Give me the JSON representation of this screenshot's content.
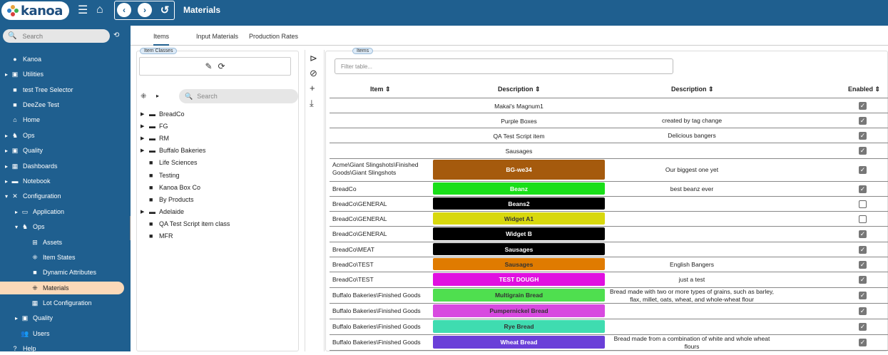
{
  "app": {
    "logo_text": "kanoa",
    "page_title": "Materials"
  },
  "sidebar": {
    "search_placeholder": "Search",
    "items": [
      {
        "label": "Kanoa",
        "icon": "●",
        "arrow": ""
      },
      {
        "label": "Utilities",
        "icon": "▣",
        "arrow": "▸"
      },
      {
        "label": "test Tree Selector",
        "icon": "■",
        "arrow": ""
      },
      {
        "label": "DeeZee Test",
        "icon": "■",
        "arrow": ""
      },
      {
        "label": "Home",
        "icon": "⌂",
        "arrow": ""
      },
      {
        "label": "Ops",
        "icon": "♞",
        "arrow": "▸"
      },
      {
        "label": "Quality",
        "icon": "▣",
        "arrow": "▸"
      },
      {
        "label": "Dashboards",
        "icon": "▦",
        "arrow": "▸"
      },
      {
        "label": "Notebook",
        "icon": "▬",
        "arrow": "▸"
      },
      {
        "label": "Configuration",
        "icon": "✕",
        "arrow": "▾"
      },
      {
        "label": "Application",
        "icon": "▭",
        "arrow": "▸"
      },
      {
        "label": "Ops",
        "icon": "♞",
        "arrow": "▾"
      },
      {
        "label": "Assets",
        "icon": "⊞",
        "arrow": ""
      },
      {
        "label": "Item States",
        "icon": "⁜",
        "arrow": ""
      },
      {
        "label": "Dynamic Attributes",
        "icon": "■",
        "arrow": ""
      },
      {
        "label": "Materials",
        "icon": "⁜",
        "arrow": ""
      },
      {
        "label": "Lot Configuration",
        "icon": "▦",
        "arrow": ""
      },
      {
        "label": "Quality",
        "icon": "▣",
        "arrow": "▸"
      },
      {
        "label": "Users",
        "icon": "👥",
        "arrow": ""
      },
      {
        "label": "Help",
        "icon": "?",
        "arrow": ""
      }
    ]
  },
  "tabs": [
    "Items",
    "Input Materials",
    "Production Rates"
  ],
  "item_classes": {
    "label": "Item Classes",
    "search_placeholder": "Search",
    "tree": [
      {
        "label": "BreadCo",
        "folder": true
      },
      {
        "label": "FG",
        "folder": true
      },
      {
        "label": "RM",
        "folder": true
      },
      {
        "label": "Buffalo Bakeries",
        "folder": true
      },
      {
        "label": "Life Sciences",
        "folder": false
      },
      {
        "label": "Testing",
        "folder": false
      },
      {
        "label": "Kanoa Box Co",
        "folder": false
      },
      {
        "label": "By Products",
        "folder": false
      },
      {
        "label": "Adelaide",
        "folder": true
      },
      {
        "label": "QA Test Script item class",
        "folder": false
      },
      {
        "label": "MFR",
        "folder": false
      }
    ]
  },
  "items_table": {
    "label": "Items",
    "filter_placeholder": "Filter table...",
    "headers": {
      "item": "Item",
      "description": "Description",
      "description2": "Description",
      "enabled": "Enabled"
    },
    "rows": [
      {
        "item": "",
        "desc": "Makai's Magnum1",
        "color": "",
        "text_color": "#222",
        "desc2": "",
        "enabled": true
      },
      {
        "item": "",
        "desc": "Purple Boxes",
        "color": "",
        "text_color": "#222",
        "desc2": "created by tag change",
        "enabled": true
      },
      {
        "item": "",
        "desc": "QA Test Script item",
        "color": "",
        "text_color": "#222",
        "desc2": "Delicious bangers",
        "enabled": true
      },
      {
        "item": "",
        "desc": "Sausages",
        "color": "",
        "text_color": "#222",
        "desc2": "",
        "enabled": true
      },
      {
        "item": "Acme\\Giant Slingshots\\Finished Goods\\Giant Slingshots",
        "desc": "BG-we34",
        "color": "#a55a0d",
        "text_color": "#fff",
        "desc2": "Our biggest one yet",
        "enabled": true
      },
      {
        "item": "BreadCo",
        "desc": "Beanz",
        "color": "#1adf1a",
        "text_color": "#fff",
        "desc2": "best beanz ever",
        "enabled": true
      },
      {
        "item": "BreadCo\\GENERAL",
        "desc": "Beans2",
        "color": "#000000",
        "text_color": "#fff",
        "desc2": "",
        "enabled": false
      },
      {
        "item": "BreadCo\\GENERAL",
        "desc": "Widget A1",
        "color": "#d8d80e",
        "text_color": "#333",
        "desc2": "",
        "enabled": false
      },
      {
        "item": "BreadCo\\GENERAL",
        "desc": "Widget B",
        "color": "#000000",
        "text_color": "#fff",
        "desc2": "",
        "enabled": true
      },
      {
        "item": "BreadCo\\MEAT",
        "desc": "Sausages",
        "color": "#000000",
        "text_color": "#fff",
        "desc2": "",
        "enabled": true
      },
      {
        "item": "BreadCo\\TEST",
        "desc": "Sausages",
        "color": "#e07b00",
        "text_color": "#333",
        "desc2": "English Bangers",
        "enabled": true
      },
      {
        "item": "BreadCo\\TEST",
        "desc": "TEST DOUGH",
        "color": "#e010e0",
        "text_color": "#fff",
        "desc2": "just a test",
        "enabled": true
      },
      {
        "item": "Buffalo Bakeries\\Finished Goods",
        "desc": "Multigrain Bread",
        "color": "#4fdf4f",
        "text_color": "#333",
        "desc2": "Bread made with two or more types of grains, such as barley, flax, millet, oats, wheat, and whole-wheat flour",
        "enabled": true
      },
      {
        "item": "Buffalo Bakeries\\Finished Goods",
        "desc": "Pumpernickel Bread",
        "color": "#d84ae0",
        "text_color": "#333",
        "desc2": "",
        "enabled": true
      },
      {
        "item": "Buffalo Bakeries\\Finished Goods",
        "desc": "Rye Bread",
        "color": "#3fdcb0",
        "text_color": "#333",
        "desc2": "",
        "enabled": true
      },
      {
        "item": "Buffalo Bakeries\\Finished Goods",
        "desc": "Wheat Bread",
        "color": "#6a3fd8",
        "text_color": "#fff",
        "desc2": "Bread made from a combination of white and whole wheat flours",
        "enabled": true
      }
    ]
  }
}
